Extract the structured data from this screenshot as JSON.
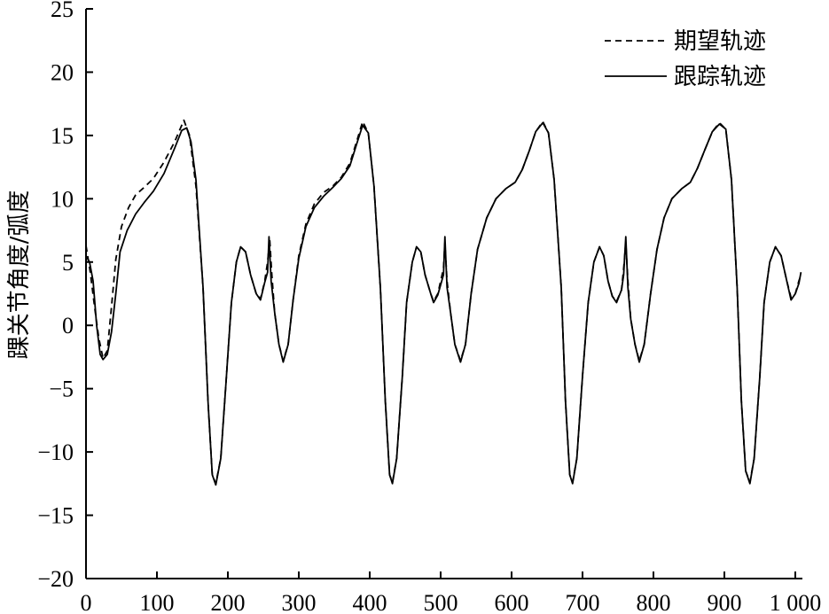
{
  "chart_data": {
    "type": "line",
    "title": "",
    "xlabel": "",
    "ylabel": "踝关节角度/弧度",
    "xlim": [
      0,
      1010
    ],
    "ylim": [
      -20,
      25
    ],
    "x_ticks": [
      0,
      100,
      200,
      300,
      400,
      500,
      600,
      700,
      800,
      900,
      1000
    ],
    "x_tick_labels": [
      "0",
      "100",
      "200",
      "300",
      "400",
      "500",
      "600",
      "700",
      "800",
      "900",
      "1 000"
    ],
    "y_ticks": [
      -20,
      -15,
      -10,
      -5,
      0,
      5,
      10,
      15,
      20,
      25
    ],
    "y_tick_labels": [
      "−20",
      "−15",
      "−10",
      "−5",
      "0",
      "5",
      "10",
      "15",
      "20",
      "25"
    ],
    "grid": false,
    "legend": "top-right",
    "series": [
      {
        "name": "期望轨迹",
        "style": "dashed",
        "color": "#000000",
        "points": [
          [
            0,
            6.3
          ],
          [
            6,
            4.2
          ],
          [
            12,
            1.5
          ],
          [
            18,
            -1.0
          ],
          [
            24,
            -2.6
          ],
          [
            30,
            -2.0
          ],
          [
            36,
            1.5
          ],
          [
            42,
            5.2
          ],
          [
            50,
            7.8
          ],
          [
            60,
            9.3
          ],
          [
            70,
            10.3
          ],
          [
            82,
            10.9
          ],
          [
            95,
            11.6
          ],
          [
            110,
            12.9
          ],
          [
            125,
            14.5
          ],
          [
            138,
            16.2
          ],
          [
            146,
            15.0
          ],
          [
            155,
            11.0
          ],
          [
            165,
            3.0
          ],
          [
            172,
            -6.0
          ],
          [
            178,
            -11.8
          ],
          [
            183,
            -12.5
          ],
          [
            190,
            -10.5
          ],
          [
            198,
            -4.0
          ],
          [
            205,
            1.8
          ],
          [
            212,
            5.0
          ],
          [
            218,
            6.2
          ],
          [
            225,
            5.8
          ],
          [
            232,
            4.0
          ],
          [
            240,
            2.5
          ],
          [
            246,
            2.1
          ],
          [
            252,
            3.5
          ],
          [
            256,
            5.0
          ],
          [
            259,
            6.8
          ],
          [
            262,
            4.0
          ],
          [
            266,
            1.0
          ],
          [
            272,
            -1.5
          ],
          [
            278,
            -2.8
          ],
          [
            285,
            -1.5
          ],
          [
            292,
            2.0
          ],
          [
            300,
            5.5
          ],
          [
            310,
            8.0
          ],
          [
            322,
            9.6
          ],
          [
            335,
            10.5
          ],
          [
            348,
            11.0
          ],
          [
            360,
            11.7
          ],
          [
            372,
            12.8
          ],
          [
            382,
            14.6
          ],
          [
            390,
            16.1
          ],
          [
            398,
            15.2
          ],
          [
            406,
            11.0
          ],
          [
            415,
            3.0
          ],
          [
            422,
            -6.0
          ],
          [
            428,
            -11.8
          ],
          [
            432,
            -12.4
          ],
          [
            438,
            -10.5
          ],
          [
            446,
            -4.0
          ],
          [
            452,
            1.8
          ],
          [
            460,
            5.0
          ],
          [
            466,
            6.2
          ],
          [
            472,
            5.8
          ],
          [
            478,
            4.0
          ],
          [
            486,
            2.5
          ],
          [
            490,
            1.9
          ],
          [
            496,
            2.5
          ],
          [
            504,
            4.5
          ],
          [
            506,
            6.5
          ],
          [
            509,
            3.5
          ],
          [
            514,
            1.0
          ],
          [
            520,
            -1.5
          ],
          [
            528,
            -2.8
          ],
          [
            535,
            -1.5
          ],
          [
            543,
            2.5
          ],
          [
            552,
            6.0
          ],
          [
            565,
            8.5
          ],
          [
            578,
            10.0
          ],
          [
            592,
            10.8
          ],
          [
            605,
            11.3
          ],
          [
            615,
            12.3
          ],
          [
            625,
            13.8
          ],
          [
            634,
            15.3
          ],
          [
            644,
            16.1
          ],
          [
            652,
            15.2
          ],
          [
            660,
            11.5
          ],
          [
            670,
            3.0
          ],
          [
            676,
            -6.0
          ],
          [
            682,
            -11.8
          ],
          [
            686,
            -12.4
          ],
          [
            692,
            -10.5
          ],
          [
            700,
            -4.0
          ],
          [
            708,
            1.8
          ],
          [
            716,
            5.0
          ],
          [
            724,
            6.2
          ],
          [
            730,
            5.5
          ],
          [
            736,
            3.5
          ],
          [
            742,
            2.3
          ],
          [
            748,
            1.9
          ],
          [
            755,
            2.8
          ],
          [
            758,
            4.5
          ],
          [
            761,
            6.5
          ],
          [
            764,
            3.5
          ],
          [
            768,
            0.5
          ],
          [
            774,
            -1.5
          ],
          [
            780,
            -2.8
          ],
          [
            787,
            -1.5
          ],
          [
            796,
            2.5
          ],
          [
            805,
            6.0
          ],
          [
            815,
            8.5
          ],
          [
            826,
            10.0
          ],
          [
            840,
            10.8
          ],
          [
            852,
            11.3
          ],
          [
            862,
            12.4
          ],
          [
            872,
            13.8
          ],
          [
            883,
            15.3
          ],
          [
            893,
            16.0
          ],
          [
            902,
            15.5
          ],
          [
            910,
            11.5
          ],
          [
            918,
            3.0
          ],
          [
            924,
            -6.0
          ],
          [
            930,
            -11.5
          ],
          [
            936,
            -12.4
          ],
          [
            942,
            -10.5
          ],
          [
            950,
            -4.0
          ],
          [
            956,
            1.8
          ],
          [
            964,
            5.0
          ],
          [
            972,
            6.2
          ],
          [
            980,
            5.5
          ],
          [
            988,
            3.5
          ],
          [
            994,
            2.2
          ],
          [
            1000,
            2.5
          ],
          [
            1005,
            3.5
          ],
          [
            1008,
            4.0
          ]
        ]
      },
      {
        "name": "跟踪轨迹",
        "style": "solid",
        "color": "#000000",
        "points": [
          [
            0,
            5.5
          ],
          [
            5,
            5.0
          ],
          [
            10,
            3.5
          ],
          [
            15,
            0.0
          ],
          [
            20,
            -2.3
          ],
          [
            24,
            -2.7
          ],
          [
            30,
            -2.3
          ],
          [
            36,
            -0.5
          ],
          [
            42,
            2.5
          ],
          [
            48,
            5.8
          ],
          [
            58,
            7.5
          ],
          [
            70,
            8.8
          ],
          [
            82,
            9.7
          ],
          [
            95,
            10.6
          ],
          [
            110,
            12.0
          ],
          [
            125,
            14.0
          ],
          [
            135,
            15.4
          ],
          [
            142,
            15.6
          ],
          [
            148,
            14.5
          ],
          [
            155,
            11.5
          ],
          [
            165,
            3.0
          ],
          [
            172,
            -6.0
          ],
          [
            178,
            -11.8
          ],
          [
            183,
            -12.6
          ],
          [
            190,
            -10.5
          ],
          [
            198,
            -4.0
          ],
          [
            205,
            1.8
          ],
          [
            212,
            5.0
          ],
          [
            218,
            6.2
          ],
          [
            225,
            5.8
          ],
          [
            232,
            4.0
          ],
          [
            240,
            2.5
          ],
          [
            246,
            2.0
          ],
          [
            252,
            3.4
          ],
          [
            256,
            4.2
          ],
          [
            258,
            7.0
          ],
          [
            261,
            3.5
          ],
          [
            266,
            1.0
          ],
          [
            272,
            -1.5
          ],
          [
            278,
            -2.9
          ],
          [
            285,
            -1.5
          ],
          [
            292,
            2.0
          ],
          [
            300,
            5.3
          ],
          [
            310,
            7.8
          ],
          [
            322,
            9.3
          ],
          [
            335,
            10.2
          ],
          [
            348,
            10.9
          ],
          [
            360,
            11.6
          ],
          [
            372,
            12.6
          ],
          [
            382,
            14.4
          ],
          [
            390,
            15.8
          ],
          [
            398,
            15.2
          ],
          [
            406,
            11.0
          ],
          [
            415,
            3.0
          ],
          [
            422,
            -6.0
          ],
          [
            428,
            -11.8
          ],
          [
            432,
            -12.5
          ],
          [
            438,
            -10.5
          ],
          [
            446,
            -4.0
          ],
          [
            452,
            1.8
          ],
          [
            460,
            5.0
          ],
          [
            466,
            6.2
          ],
          [
            472,
            5.8
          ],
          [
            478,
            4.0
          ],
          [
            486,
            2.5
          ],
          [
            490,
            1.8
          ],
          [
            496,
            2.4
          ],
          [
            504,
            4.0
          ],
          [
            506,
            7.0
          ],
          [
            509,
            3.0
          ],
          [
            514,
            1.0
          ],
          [
            520,
            -1.5
          ],
          [
            528,
            -2.9
          ],
          [
            535,
            -1.5
          ],
          [
            543,
            2.5
          ],
          [
            552,
            6.0
          ],
          [
            565,
            8.5
          ],
          [
            578,
            10.0
          ],
          [
            592,
            10.8
          ],
          [
            605,
            11.3
          ],
          [
            615,
            12.3
          ],
          [
            625,
            13.8
          ],
          [
            634,
            15.3
          ],
          [
            644,
            16.0
          ],
          [
            652,
            15.2
          ],
          [
            660,
            11.5
          ],
          [
            670,
            3.0
          ],
          [
            676,
            -6.0
          ],
          [
            682,
            -11.8
          ],
          [
            686,
            -12.5
          ],
          [
            692,
            -10.5
          ],
          [
            700,
            -4.0
          ],
          [
            708,
            1.8
          ],
          [
            716,
            5.0
          ],
          [
            724,
            6.2
          ],
          [
            730,
            5.5
          ],
          [
            736,
            3.5
          ],
          [
            742,
            2.3
          ],
          [
            748,
            1.8
          ],
          [
            755,
            2.8
          ],
          [
            758,
            4.0
          ],
          [
            761,
            7.0
          ],
          [
            764,
            3.0
          ],
          [
            768,
            0.5
          ],
          [
            774,
            -1.5
          ],
          [
            780,
            -2.9
          ],
          [
            787,
            -1.5
          ],
          [
            796,
            2.5
          ],
          [
            805,
            6.0
          ],
          [
            815,
            8.5
          ],
          [
            826,
            10.0
          ],
          [
            840,
            10.8
          ],
          [
            852,
            11.3
          ],
          [
            862,
            12.4
          ],
          [
            872,
            13.8
          ],
          [
            883,
            15.3
          ],
          [
            893,
            15.9
          ],
          [
            902,
            15.5
          ],
          [
            910,
            11.5
          ],
          [
            918,
            3.0
          ],
          [
            924,
            -6.0
          ],
          [
            930,
            -11.5
          ],
          [
            936,
            -12.5
          ],
          [
            942,
            -10.5
          ],
          [
            950,
            -4.0
          ],
          [
            956,
            1.8
          ],
          [
            964,
            5.0
          ],
          [
            972,
            6.2
          ],
          [
            980,
            5.5
          ],
          [
            988,
            3.5
          ],
          [
            994,
            2.0
          ],
          [
            1000,
            2.5
          ],
          [
            1005,
            3.3
          ],
          [
            1008,
            4.2
          ]
        ]
      }
    ]
  }
}
